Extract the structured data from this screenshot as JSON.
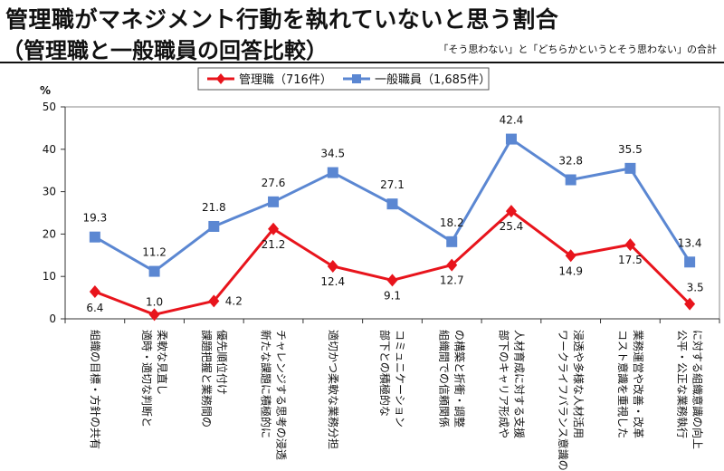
{
  "header": {
    "title_line1": "管理職がマネジメント行動を執れていないと思う割合",
    "title_line2": "（管理職と一般職員の回答比較）",
    "note": "「そう思わない」と「どちらかというとそう思わない」の合計"
  },
  "chart_data": {
    "type": "line",
    "ylabel": "%",
    "ylim": [
      0,
      50
    ],
    "yticks": [
      0,
      10,
      20,
      30,
      40,
      50
    ],
    "grid": false,
    "legend_position": "top-center",
    "categories": [
      [
        "組織の目標・方針の共有"
      ],
      [
        "適時・適切な判断と",
        "柔軟な見直し"
      ],
      [
        "課題把握と業務間の",
        "優先順位付け"
      ],
      [
        "新たな課題に積極的に",
        "チャレンジする思考の浸透"
      ],
      [
        "適切かつ柔軟な業務分担"
      ],
      [
        "部下との積極的な",
        "コミュニケーション"
      ],
      [
        "組織間での信頼関係",
        "の構築と折衝・調整"
      ],
      [
        "部下のキャリア形成や",
        "人材育成に対する支援"
      ],
      [
        "ワークライフバランス意識の",
        "浸透や多様な人材活用"
      ],
      [
        "コスト意識を重視した",
        "業務運営や改善・改革"
      ],
      [
        "公平・公正な業務執行",
        "に対する組織意識の向上"
      ]
    ],
    "series": [
      {
        "name": "管理職（716件）",
        "color": "#e8141c",
        "marker": "diamond",
        "values": [
          6.4,
          1.0,
          4.2,
          21.2,
          12.4,
          9.1,
          12.7,
          25.4,
          14.9,
          17.5,
          3.5
        ],
        "labels": [
          "6.4",
          "1.0",
          "4.2",
          "21.2",
          "12.4",
          "9.1",
          "12.7",
          "25.4",
          "14.9",
          "17.5",
          "3.5"
        ]
      },
      {
        "name": "一般職員（1,685件）",
        "color": "#5b87d2",
        "marker": "square",
        "values": [
          19.3,
          11.2,
          21.8,
          27.6,
          34.5,
          27.1,
          18.2,
          42.4,
          32.8,
          35.5,
          13.4
        ],
        "labels": [
          "19.3",
          "11.2",
          "21.8",
          "27.6",
          "34.5",
          "27.1",
          "18.2",
          "42.4",
          "32.8",
          "35.5",
          "13.4"
        ]
      }
    ]
  }
}
